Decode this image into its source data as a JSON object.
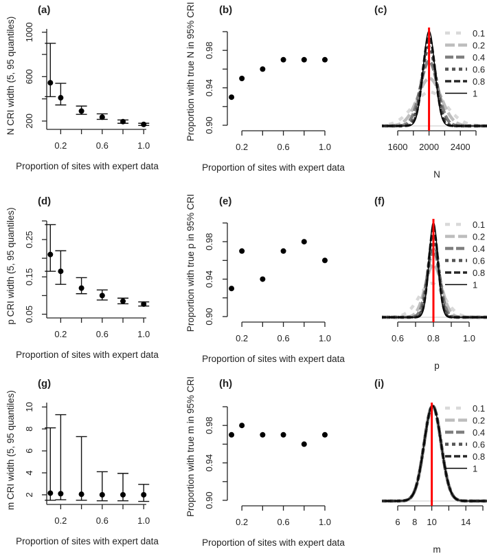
{
  "chart_data": [
    {
      "id": "a",
      "type": "errorbar",
      "panel_label": "(a)",
      "xlabel": "Proportion of sites with expert data",
      "ylabel": "N CRI width (5, 95 quantiles)",
      "x": [
        0.1,
        0.2,
        0.4,
        0.6,
        0.8,
        1.0
      ],
      "y": [
        545,
        410,
        290,
        235,
        195,
        170
      ],
      "lower": [
        420,
        345,
        260,
        215,
        180,
        160
      ],
      "upper": [
        900,
        540,
        335,
        265,
        210,
        180
      ],
      "xlim": [
        0.065,
        1.025
      ],
      "ylim": [
        125,
        1030
      ],
      "xticks": [
        0.2,
        0.4,
        0.6,
        0.8,
        1.0
      ],
      "xtick_labels": [
        "0.2",
        "",
        "0.6",
        "",
        "1.0"
      ],
      "yticks": [
        200,
        400,
        600,
        800,
        1000
      ],
      "ytick_labels": [
        "200",
        "",
        "600",
        "",
        "1000"
      ]
    },
    {
      "id": "b",
      "type": "scatter",
      "panel_label": "(b)",
      "xlabel": "Proportion of sites with expert data",
      "ylabel": "Proportion with true N in 95% CRI",
      "x": [
        0.1,
        0.2,
        0.4,
        0.6,
        0.8,
        1.0
      ],
      "y": [
        0.93,
        0.95,
        0.96,
        0.97,
        0.97,
        0.97
      ],
      "xlim": [
        0.06,
        1.02
      ],
      "ylim": [
        0.9,
        1.0
      ],
      "xticks": [
        0.2,
        0.4,
        0.6,
        0.8,
        1.0
      ],
      "xtick_labels": [
        "0.2",
        "",
        "0.6",
        "",
        "1.0"
      ],
      "yticks": [
        0.9,
        0.92,
        0.94,
        0.96,
        0.98,
        1.0
      ],
      "ytick_labels": [
        "0.90",
        "",
        "0.94",
        "",
        "0.98",
        ""
      ]
    },
    {
      "id": "c",
      "type": "density",
      "panel_label": "(c)",
      "xlabel": "N",
      "reference_line": 2000,
      "reference_color": "#ff0000",
      "xlim": [
        1600,
        2600
      ],
      "xticks": [
        1600,
        1800,
        2000,
        2200,
        2400,
        2600
      ],
      "xtick_labels": [
        "1600",
        "",
        "2000",
        "",
        "2400",
        ""
      ],
      "series": [
        {
          "name": "0.1",
          "mean": 2010,
          "sd": 210
        },
        {
          "name": "0.2",
          "mean": 2005,
          "sd": 150
        },
        {
          "name": "0.4",
          "mean": 2000,
          "sd": 110
        },
        {
          "name": "0.6",
          "mean": 2000,
          "sd": 90
        },
        {
          "name": "0.8",
          "mean": 2000,
          "sd": 80
        },
        {
          "name": "1",
          "mean": 2000,
          "sd": 75
        }
      ]
    },
    {
      "id": "d",
      "type": "errorbar",
      "panel_label": "(d)",
      "xlabel": "Proportion of sites with expert data",
      "ylabel": "p CRI width (5, 95 quantiles)",
      "x": [
        0.1,
        0.2,
        0.4,
        0.6,
        0.8,
        1.0
      ],
      "y": [
        0.21,
        0.165,
        0.12,
        0.1,
        0.085,
        0.077
      ],
      "lower": [
        0.165,
        0.13,
        0.105,
        0.088,
        0.078,
        0.072
      ],
      "upper": [
        0.29,
        0.22,
        0.148,
        0.115,
        0.093,
        0.083
      ],
      "xlim": [
        0.065,
        1.025
      ],
      "ylim": [
        0.04,
        0.3
      ],
      "xticks": [
        0.2,
        0.4,
        0.6,
        0.8,
        1.0
      ],
      "xtick_labels": [
        "0.2",
        "",
        "0.6",
        "",
        "1.0"
      ],
      "yticks": [
        0.05,
        0.1,
        0.15,
        0.2,
        0.25,
        0.3
      ],
      "ytick_labels": [
        "0.05",
        "",
        "0.15",
        "",
        "0.25",
        ""
      ]
    },
    {
      "id": "e",
      "type": "scatter",
      "panel_label": "(e)",
      "xlabel": "Proportion of sites with expert data",
      "ylabel": "Proportion with true p in 95% CRI",
      "x": [
        0.1,
        0.2,
        0.4,
        0.6,
        0.8,
        1.0
      ],
      "y": [
        0.93,
        0.97,
        0.94,
        0.97,
        0.98,
        0.96
      ],
      "xlim": [
        0.06,
        1.02
      ],
      "ylim": [
        0.9,
        1.0
      ],
      "xticks": [
        0.2,
        0.4,
        0.6,
        0.8,
        1.0
      ],
      "xtick_labels": [
        "0.2",
        "",
        "0.6",
        "",
        "1.0"
      ],
      "yticks": [
        0.9,
        0.92,
        0.94,
        0.96,
        0.98,
        1.0
      ],
      "ytick_labels": [
        "0.90",
        "",
        "0.94",
        "",
        "0.98",
        ""
      ]
    },
    {
      "id": "f",
      "type": "density",
      "panel_label": "(f)",
      "xlabel": "p",
      "reference_line": 0.8,
      "reference_color": "#ff0000",
      "xlim": [
        0.6,
        1.0
      ],
      "xticks": [
        0.6,
        0.7,
        0.8,
        0.9,
        1.0
      ],
      "xtick_labels": [
        "0.6",
        "",
        "0.8",
        "",
        "1.0"
      ],
      "series": [
        {
          "name": "0.1",
          "mean": 0.79,
          "sd": 0.07
        },
        {
          "name": "0.2",
          "mean": 0.8,
          "sd": 0.045
        },
        {
          "name": "0.4",
          "mean": 0.8,
          "sd": 0.035
        },
        {
          "name": "0.6",
          "mean": 0.8,
          "sd": 0.03
        },
        {
          "name": "0.8",
          "mean": 0.8,
          "sd": 0.027
        },
        {
          "name": "1",
          "mean": 0.8,
          "sd": 0.025
        }
      ]
    },
    {
      "id": "g",
      "type": "errorbar",
      "panel_label": "(g)",
      "xlabel": "Proportion of sites with expert data",
      "ylabel": "m CRI width (5, 95 quantiles)",
      "x": [
        0.1,
        0.2,
        0.4,
        0.6,
        0.8,
        1.0
      ],
      "y": [
        2.15,
        2.1,
        2.05,
        2.0,
        2.0,
        2.0
      ],
      "lower": [
        1.5,
        1.55,
        1.5,
        1.45,
        1.45,
        1.4
      ],
      "upper": [
        8.1,
        9.3,
        7.3,
        4.1,
        3.95,
        2.95
      ],
      "xlim": [
        0.065,
        1.025
      ],
      "ylim": [
        1.12,
        10.4
      ],
      "xticks": [
        0.2,
        0.4,
        0.6,
        0.8,
        1.0
      ],
      "xtick_labels": [
        "0.2",
        "",
        "0.6",
        "",
        "1.0"
      ],
      "yticks": [
        2,
        4,
        6,
        8,
        10
      ],
      "ytick_labels": [
        "2",
        "4",
        "6",
        "8",
        "10"
      ]
    },
    {
      "id": "h",
      "type": "scatter",
      "panel_label": "(h)",
      "xlabel": "Proportion of sites with expert data",
      "ylabel": "Proportion with true m in 95% CRI",
      "x": [
        0.1,
        0.2,
        0.4,
        0.6,
        0.8,
        1.0
      ],
      "y": [
        0.97,
        0.98,
        0.97,
        0.97,
        0.96,
        0.97
      ],
      "xlim": [
        0.06,
        1.02
      ],
      "ylim": [
        0.9,
        1.0
      ],
      "xticks": [
        0.2,
        0.4,
        0.6,
        0.8,
        1.0
      ],
      "xtick_labels": [
        "0.2",
        "",
        "0.6",
        "",
        "1.0"
      ],
      "yticks": [
        0.9,
        0.92,
        0.94,
        0.96,
        0.98,
        1.0
      ],
      "ytick_labels": [
        "0.90",
        "",
        "0.94",
        "",
        "0.98",
        ""
      ]
    },
    {
      "id": "i",
      "type": "density",
      "panel_label": "(i)",
      "xlabel": "m",
      "reference_line": 10,
      "reference_color": "#ff0000",
      "xlim": [
        6,
        16
      ],
      "xticks": [
        6,
        8,
        10,
        12,
        14,
        16
      ],
      "xtick_labels": [
        "6",
        "8",
        "10",
        "",
        "14",
        ""
      ],
      "series": [
        {
          "name": "0.1",
          "mean": 10.1,
          "sd": 1.0
        },
        {
          "name": "0.2",
          "mean": 10.1,
          "sd": 1.0
        },
        {
          "name": "0.4",
          "mean": 10.1,
          "sd": 1.0
        },
        {
          "name": "0.6",
          "mean": 10.1,
          "sd": 1.0
        },
        {
          "name": "0.8",
          "mean": 10.1,
          "sd": 1.0
        },
        {
          "name": "1",
          "mean": 10.1,
          "sd": 1.0
        }
      ]
    }
  ],
  "legend_styles": [
    {
      "name": "0.1",
      "color": "#d9d9d9"
    },
    {
      "name": "0.2",
      "color": "#bdbdbd"
    },
    {
      "name": "0.4",
      "color": "#7f7f7f"
    },
    {
      "name": "0.6",
      "color": "#555555"
    },
    {
      "name": "0.8",
      "color": "#262626"
    },
    {
      "name": "1",
      "color": "#000000"
    }
  ]
}
